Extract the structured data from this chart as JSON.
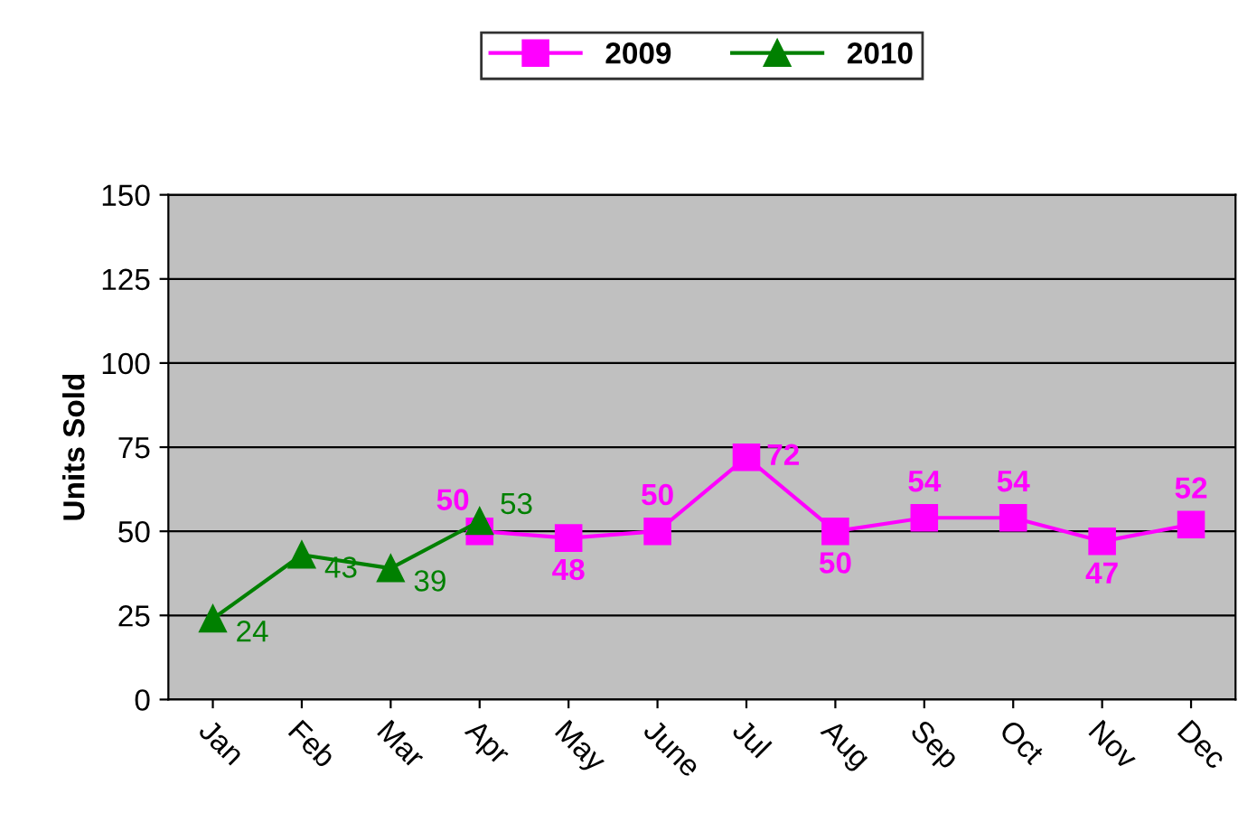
{
  "chart_data": {
    "type": "line",
    "ylabel": "Units Sold",
    "categories": [
      "Jan",
      "Feb",
      "Mar",
      "Apr",
      "May",
      "June",
      "Jul",
      "Aug",
      "Sep",
      "Oct",
      "Nov",
      "Dec"
    ],
    "series": [
      {
        "name": "2009",
        "color": "#ff00ff",
        "marker": "square",
        "values": [
          null,
          null,
          null,
          50,
          48,
          50,
          72,
          50,
          54,
          54,
          47,
          52
        ]
      },
      {
        "name": "2010",
        "color": "#008000",
        "marker": "triangle",
        "values": [
          24,
          43,
          39,
          53,
          null,
          null,
          null,
          null,
          null,
          null,
          null,
          null
        ]
      }
    ],
    "ylim": [
      0,
      150
    ],
    "yticks": [
      0,
      25,
      50,
      75,
      100,
      125,
      150
    ],
    "grid": "y",
    "legend": "top",
    "data_labels": true,
    "line_style": "solid"
  }
}
